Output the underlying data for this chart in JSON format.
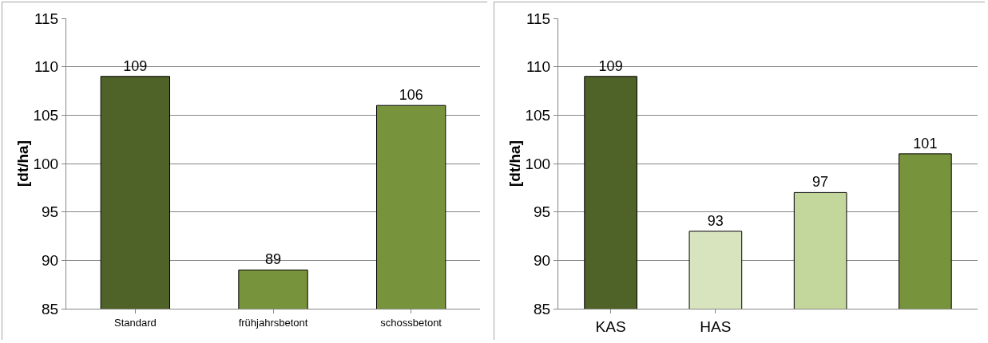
{
  "chart_data": [
    {
      "type": "bar",
      "ylabel": "[dt/ha]",
      "categories": [
        "Standard",
        "frühjahrsbetont",
        "schossbetont"
      ],
      "values": [
        109,
        89,
        106
      ],
      "colors": [
        "#4f6228",
        "#77933c",
        "#77933c"
      ],
      "ylim": [
        85,
        115
      ],
      "yticks": [
        85,
        90,
        95,
        100,
        105,
        110,
        115
      ],
      "grid": "y",
      "data_labels": true
    },
    {
      "type": "bar",
      "ylabel": "[dt/ha]",
      "categories": [
        "KAS",
        "HAS",
        null,
        null
      ],
      "values": [
        109,
        93,
        97,
        101
      ],
      "colors": [
        "#4f6228",
        "#d7e4bd",
        "#c3d69b",
        "#77933c"
      ],
      "ylim": [
        85,
        115
      ],
      "yticks": [
        85,
        90,
        95,
        100,
        105,
        110,
        115
      ],
      "grid": "y",
      "data_labels": true
    }
  ]
}
